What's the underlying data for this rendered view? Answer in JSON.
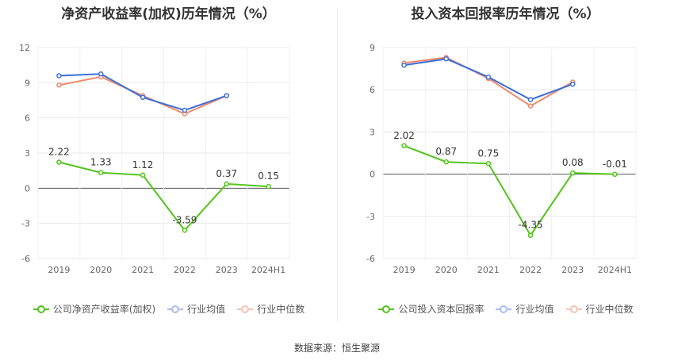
{
  "colors": {
    "company": "#52c41a",
    "avg": "#3d6fd6",
    "median": "#f0896a"
  },
  "source": "数据来源：恒生聚源",
  "chart_data": [
    {
      "type": "line",
      "title": "净资产收益率(加权)历年情况（%）",
      "categories": [
        "2019",
        "2020",
        "2021",
        "2022",
        "2023",
        "2024H1"
      ],
      "ylim": [
        -6,
        12
      ],
      "yticks": [
        -6,
        -3,
        0,
        3,
        6,
        9,
        12
      ],
      "series": [
        {
          "name": "公司净资产收益率(加权)",
          "key": "company",
          "values": [
            2.22,
            1.33,
            1.12,
            -3.59,
            0.37,
            0.15
          ],
          "labels": [
            "2.22",
            "1.33",
            "1.12",
            "-3.59",
            "0.37",
            "0.15"
          ]
        },
        {
          "name": "行业均值",
          "key": "avg",
          "values": [
            9.6,
            9.75,
            7.75,
            6.65,
            7.9,
            null
          ]
        },
        {
          "name": "行业中位数",
          "key": "median",
          "values": [
            8.8,
            9.5,
            7.9,
            6.35,
            7.9,
            null
          ]
        }
      ]
    },
    {
      "type": "line",
      "title": "投入资本回报率历年情况（%）",
      "categories": [
        "2019",
        "2020",
        "2021",
        "2022",
        "2023",
        "2024H1"
      ],
      "ylim": [
        -6,
        9
      ],
      "yticks": [
        -6,
        -3,
        0,
        3,
        6,
        9
      ],
      "series": [
        {
          "name": "公司投入资本回报率",
          "key": "company",
          "values": [
            2.02,
            0.87,
            0.75,
            -4.35,
            0.08,
            -0.01
          ],
          "labels": [
            "2.02",
            "0.87",
            "0.75",
            "-4.35",
            "0.08",
            "-0.01"
          ]
        },
        {
          "name": "行业均值",
          "key": "avg",
          "values": [
            7.75,
            8.2,
            6.9,
            5.3,
            6.4,
            null
          ]
        },
        {
          "name": "行业中位数",
          "key": "median",
          "values": [
            7.9,
            8.3,
            6.8,
            4.85,
            6.55,
            null
          ]
        }
      ]
    }
  ]
}
